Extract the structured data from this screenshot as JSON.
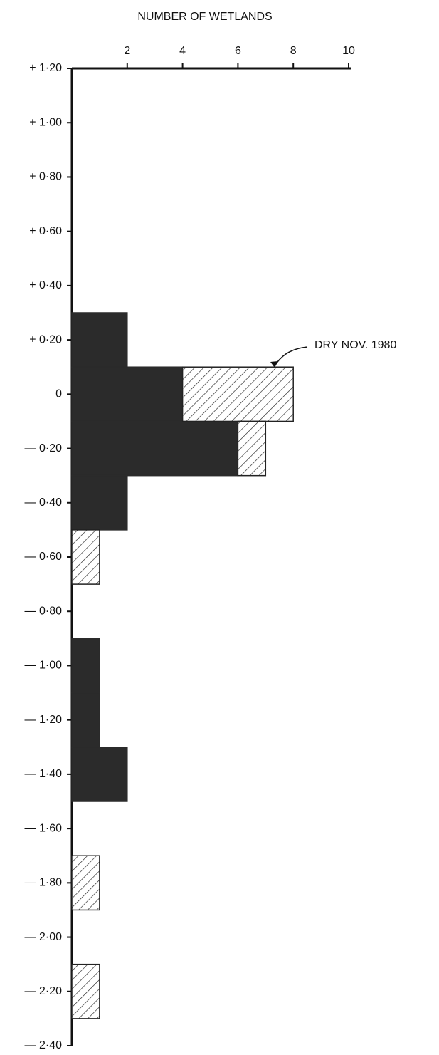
{
  "chart_data": {
    "type": "stacked-histogram",
    "orientation": "horizontal",
    "x_label": "NUMBER OF WETLANDS",
    "bins": [
      0.3,
      0.1,
      -0.1,
      -0.3,
      -0.5,
      -0.7,
      -0.9,
      -1.1,
      -1.3,
      -1.5,
      -1.7,
      -1.9,
      -2.1,
      -2.3
    ],
    "series": [
      {
        "color": "#2b2b2b",
        "values": [
          2,
          4,
          6,
          2,
          0,
          0,
          1,
          1,
          2,
          0,
          0,
          0,
          0
        ]
      },
      {
        "name": "DRY NOV. 1980",
        "color": "#222222",
        "pattern": "hatch",
        "values": [
          0,
          4,
          1,
          0,
          1,
          0,
          0,
          0,
          0,
          0,
          1,
          0,
          1
        ]
      }
    ],
    "xlim": [
      0,
      10
    ],
    "xticks": [
      2,
      4,
      6,
      8,
      10
    ],
    "ylim": [
      -2.4,
      1.2
    ],
    "yticks": [
      {
        "value": 1.2,
        "label": "+ 1·20"
      },
      {
        "value": 1.0,
        "label": "+ 1·00"
      },
      {
        "value": 0.8,
        "label": "+ 0·80"
      },
      {
        "value": 0.6,
        "label": "+ 0·60"
      },
      {
        "value": 0.4,
        "label": "+ 0·40"
      },
      {
        "value": 0.2,
        "label": "+ 0·20"
      },
      0,
      {
        "value": -0.2,
        "label": "— 0·20"
      },
      {
        "value": -0.4,
        "label": "— 0·40"
      },
      {
        "value": -0.6,
        "label": "— 0·60"
      },
      {
        "value": -0.8,
        "label": "— 0·80"
      },
      {
        "value": -1.0,
        "label": "— 1·00"
      },
      {
        "value": -1.2,
        "label": "— 1·20"
      },
      {
        "value": -1.4,
        "label": "— 1·40"
      },
      {
        "value": -1.6,
        "label": "— 1·60"
      },
      {
        "value": -1.8,
        "label": "— 1·80"
      },
      {
        "value": -2.0,
        "label": "— 2·00"
      },
      {
        "value": -2.2,
        "label": "— 2·20"
      },
      {
        "value": -2.4,
        "label": "— 2·40"
      }
    ],
    "grid": false
  }
}
